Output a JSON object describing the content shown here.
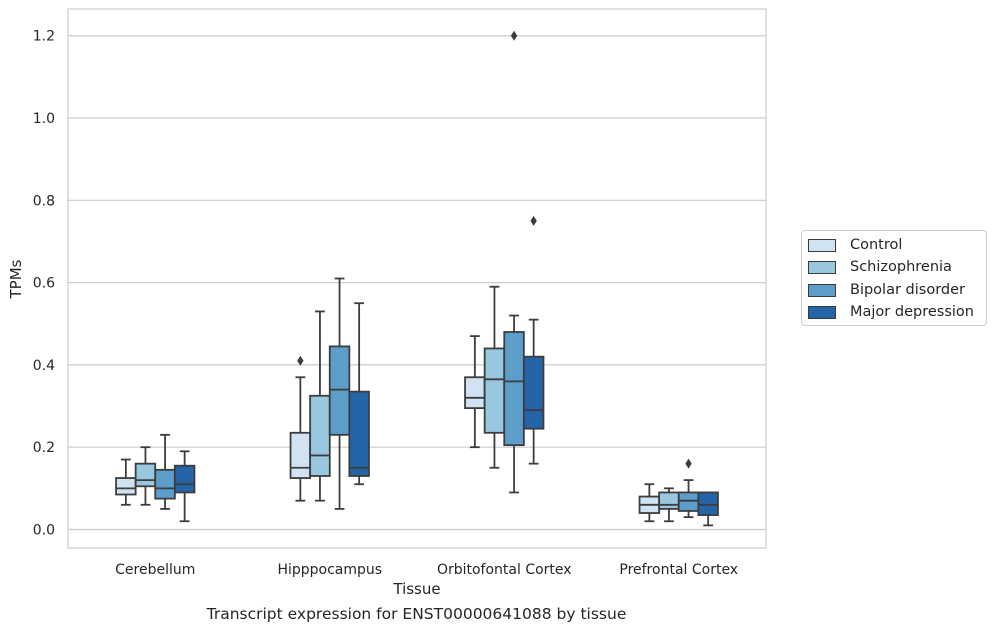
{
  "chart_data": {
    "type": "box",
    "title": "",
    "caption": "Transcript expression for ENST00000641088 by tissue",
    "xlabel": "Tissue",
    "ylabel": "TPMs",
    "ylim": [
      -0.045,
      1.265
    ],
    "yticks": [
      "0.0",
      "0.2",
      "0.4",
      "0.6",
      "0.8",
      "1.0",
      "1.2"
    ],
    "ytick_values": [
      0.0,
      0.2,
      0.4,
      0.6,
      0.8,
      1.0,
      1.2
    ],
    "grid": "horizontal",
    "legend_position": "right",
    "categories": [
      "Cerebellum",
      "Hipppocampus",
      "Orbitofontal Cortex",
      "Prefrontal Cortex"
    ],
    "series": [
      {
        "name": "Control",
        "color": "#d1e2f2",
        "boxes": [
          {
            "whislo": 0.06,
            "q1": 0.085,
            "med": 0.1,
            "q3": 0.125,
            "whishi": 0.17,
            "fliers": []
          },
          {
            "whislo": 0.07,
            "q1": 0.125,
            "med": 0.15,
            "q3": 0.235,
            "whishi": 0.37,
            "fliers": [
              0.41
            ]
          },
          {
            "whislo": 0.2,
            "q1": 0.295,
            "med": 0.32,
            "q3": 0.37,
            "whishi": 0.47,
            "fliers": []
          },
          {
            "whislo": 0.02,
            "q1": 0.04,
            "med": 0.06,
            "q3": 0.08,
            "whishi": 0.11,
            "fliers": []
          }
        ]
      },
      {
        "name": "Schizophrenia",
        "color": "#9ac7e0",
        "boxes": [
          {
            "whislo": 0.06,
            "q1": 0.105,
            "med": 0.12,
            "q3": 0.16,
            "whishi": 0.2,
            "fliers": []
          },
          {
            "whislo": 0.07,
            "q1": 0.13,
            "med": 0.18,
            "q3": 0.325,
            "whishi": 0.53,
            "fliers": []
          },
          {
            "whislo": 0.15,
            "q1": 0.235,
            "med": 0.365,
            "q3": 0.44,
            "whishi": 0.59,
            "fliers": []
          },
          {
            "whislo": 0.02,
            "q1": 0.05,
            "med": 0.06,
            "q3": 0.09,
            "whishi": 0.1,
            "fliers": []
          }
        ]
      },
      {
        "name": "Bipolar disorder",
        "color": "#5c9dc9",
        "boxes": [
          {
            "whislo": 0.05,
            "q1": 0.075,
            "med": 0.1,
            "q3": 0.145,
            "whishi": 0.23,
            "fliers": []
          },
          {
            "whislo": 0.05,
            "q1": 0.23,
            "med": 0.34,
            "q3": 0.445,
            "whishi": 0.61,
            "fliers": []
          },
          {
            "whislo": 0.09,
            "q1": 0.205,
            "med": 0.36,
            "q3": 0.48,
            "whishi": 0.52,
            "fliers": [
              1.2
            ]
          },
          {
            "whislo": 0.03,
            "q1": 0.045,
            "med": 0.07,
            "q3": 0.09,
            "whishi": 0.12,
            "fliers": [
              0.16
            ]
          }
        ]
      },
      {
        "name": "Major depression",
        "color": "#2465a8",
        "boxes": [
          {
            "whislo": 0.02,
            "q1": 0.09,
            "med": 0.11,
            "q3": 0.155,
            "whishi": 0.19,
            "fliers": []
          },
          {
            "whislo": 0.11,
            "q1": 0.13,
            "med": 0.15,
            "q3": 0.335,
            "whishi": 0.55,
            "fliers": []
          },
          {
            "whislo": 0.16,
            "q1": 0.245,
            "med": 0.29,
            "q3": 0.42,
            "whishi": 0.51,
            "fliers": [
              0.75
            ]
          },
          {
            "whislo": 0.01,
            "q1": 0.035,
            "med": 0.06,
            "q3": 0.09,
            "whishi": 0.09,
            "fliers": []
          }
        ]
      }
    ]
  }
}
